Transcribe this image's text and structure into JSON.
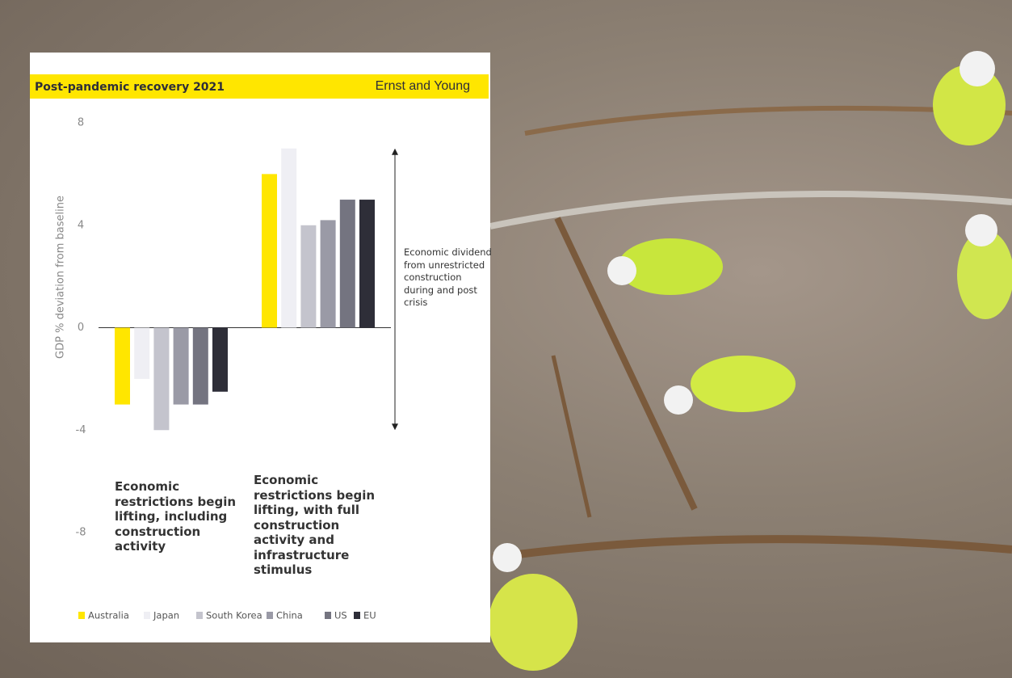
{
  "chart_data": {
    "type": "bar",
    "title": "Post-pandemic recovery 2021",
    "source": "Ernst and Young",
    "y_label": "GDP % deviation from baseline",
    "categories": [
      "Economic restrictions begin lifting, including construction activity",
      "Economic restrictions begin lifting, with full construction activity and infrastructure stimulus"
    ],
    "series": [
      {
        "name": "Australia",
        "color": "#ffe600",
        "values": [
          -3,
          6
        ]
      },
      {
        "name": "Japan",
        "color": "#efeff4",
        "values": [
          -2,
          7
        ]
      },
      {
        "name": "South Korea",
        "color": "#c4c4cd",
        "values": [
          -4,
          4
        ]
      },
      {
        "name": "China",
        "color": "#9a9aa6",
        "values": [
          -3,
          4.2
        ]
      },
      {
        "name": "US",
        "color": "#747480",
        "values": [
          -3,
          5
        ]
      },
      {
        "name": "EU",
        "color": "#2e2e38",
        "values": [
          -2.5,
          5
        ]
      }
    ],
    "ylim": [
      -8,
      8
    ],
    "yticks": [
      8,
      4,
      0,
      -4,
      -8
    ],
    "annotation": {
      "text": "Economic dividend from unrestricted construction during and post crisis",
      "range": [
        -4,
        7
      ]
    }
  }
}
